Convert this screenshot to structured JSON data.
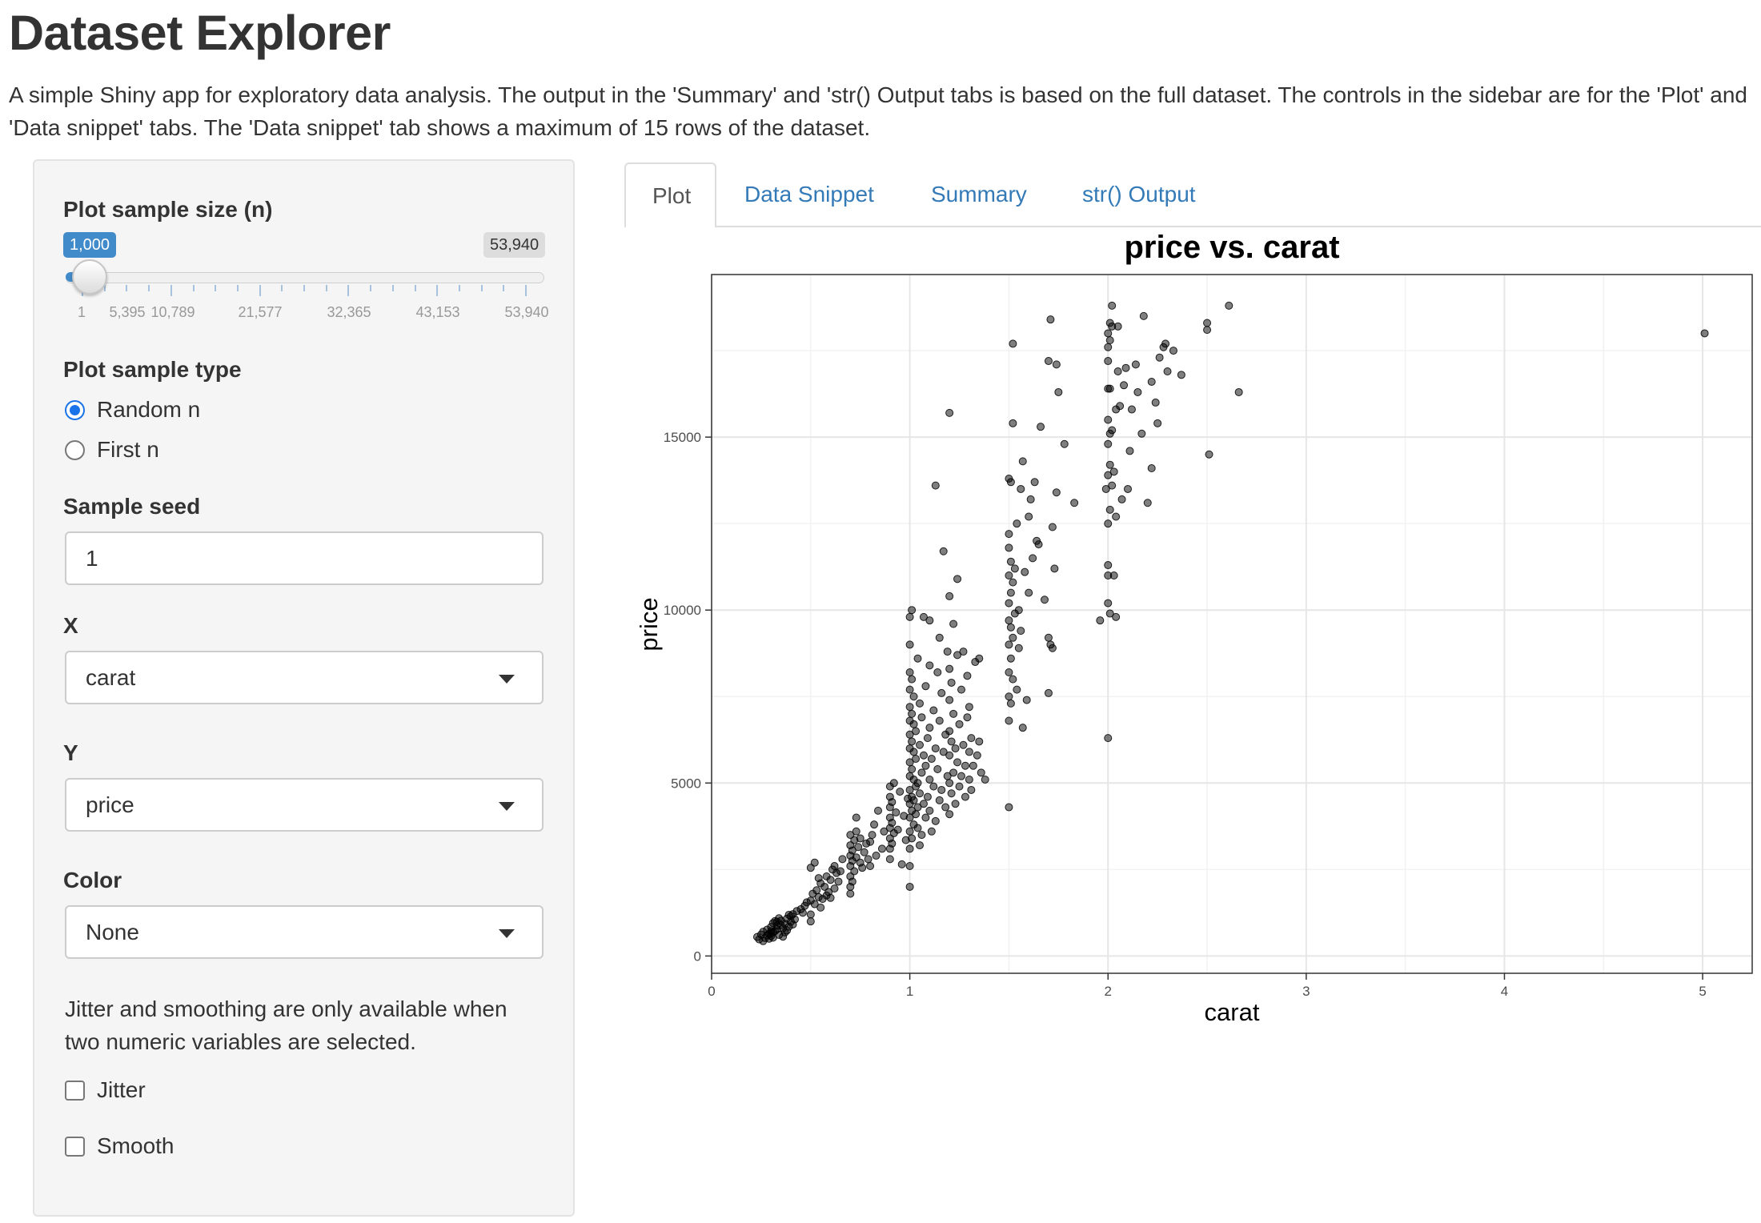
{
  "header": {
    "title": "Dataset Explorer",
    "description": "A simple Shiny app for exploratory data analysis. The output in the 'Summary' and 'str() Output tabs is based on the full dataset. The controls in the sidebar are for the 'Plot' and 'Data snippet' tabs. The 'Data snippet' tab shows a maximum of 15 rows of the dataset."
  },
  "sidebar": {
    "sample_size": {
      "label": "Plot sample size (n)",
      "value_label": "1,000",
      "max_label": "53,940",
      "value": 1000,
      "min": 1,
      "max": 53940,
      "tick_labels": [
        "1",
        "5,395",
        "10,789",
        "21,577",
        "32,365",
        "43,153",
        "53,940"
      ]
    },
    "sample_type": {
      "label": "Plot sample type",
      "options": [
        "Random n",
        "First n"
      ],
      "selected": "Random n"
    },
    "seed": {
      "label": "Sample seed",
      "value": "1"
    },
    "x": {
      "label": "X",
      "value": "carat"
    },
    "y": {
      "label": "Y",
      "value": "price"
    },
    "color": {
      "label": "Color",
      "value": "None"
    },
    "help_text": "Jitter and smoothing are only available when two numeric variables are selected.",
    "jitter": {
      "label": "Jitter",
      "checked": false
    },
    "smooth": {
      "label": "Smooth",
      "checked": false
    }
  },
  "tabs": [
    {
      "label": "Plot",
      "active": true
    },
    {
      "label": "Data Snippet",
      "active": false
    },
    {
      "label": "Summary",
      "active": false
    },
    {
      "label": "str() Output",
      "active": false
    }
  ],
  "chart_data": {
    "type": "scatter",
    "title": "price vs. carat",
    "xlabel": "carat",
    "ylabel": "price",
    "xlim": [
      0,
      5.25
    ],
    "ylim": [
      -500,
      19700
    ],
    "xticks": [
      0,
      1,
      2,
      3,
      4,
      5
    ],
    "yticks": [
      0,
      5000,
      10000,
      15000
    ],
    "grid": true,
    "point_color": "#000000",
    "point_opacity": 0.5,
    "points": [
      [
        0.23,
        550
      ],
      [
        0.24,
        480
      ],
      [
        0.25,
        620
      ],
      [
        0.26,
        700
      ],
      [
        0.27,
        520
      ],
      [
        0.28,
        760
      ],
      [
        0.29,
        640
      ],
      [
        0.3,
        580
      ],
      [
        0.3,
        840
      ],
      [
        0.31,
        690
      ],
      [
        0.31,
        950
      ],
      [
        0.32,
        720
      ],
      [
        0.33,
        880
      ],
      [
        0.34,
        610
      ],
      [
        0.35,
        1020
      ],
      [
        0.36,
        800
      ],
      [
        0.37,
        930
      ],
      [
        0.38,
        1080
      ],
      [
        0.39,
        850
      ],
      [
        0.4,
        1150
      ],
      [
        0.4,
        990
      ],
      [
        0.41,
        1210
      ],
      [
        0.42,
        1060
      ],
      [
        0.43,
        1300
      ],
      [
        0.3,
        650
      ],
      [
        0.33,
        770
      ],
      [
        0.36,
        560
      ],
      [
        0.32,
        1010
      ],
      [
        0.35,
        890
      ],
      [
        0.38,
        740
      ],
      [
        0.26,
        430
      ],
      [
        0.29,
        500
      ],
      [
        0.34,
        1090
      ],
      [
        0.37,
        680
      ],
      [
        0.39,
        1190
      ],
      [
        0.41,
        910
      ],
      [
        0.3,
        720
      ],
      [
        0.31,
        530
      ],
      [
        0.28,
        600
      ],
      [
        0.33,
        990
      ],
      [
        0.45,
        1350
      ],
      [
        0.47,
        1450
      ],
      [
        0.5,
        1600
      ],
      [
        0.5,
        1200
      ],
      [
        0.51,
        1800
      ],
      [
        0.52,
        1500
      ],
      [
        0.53,
        1900
      ],
      [
        0.54,
        1700
      ],
      [
        0.55,
        2100
      ],
      [
        0.56,
        1650
      ],
      [
        0.57,
        2000
      ],
      [
        0.58,
        2300
      ],
      [
        0.59,
        1850
      ],
      [
        0.6,
        2200
      ],
      [
        0.61,
        2500
      ],
      [
        0.62,
        1950
      ],
      [
        0.63,
        2400
      ],
      [
        0.64,
        2150
      ],
      [
        0.5,
        2550
      ],
      [
        0.52,
        2700
      ],
      [
        0.55,
        1400
      ],
      [
        0.48,
        1550
      ],
      [
        0.46,
        1250
      ],
      [
        0.58,
        1750
      ],
      [
        0.62,
        2600
      ],
      [
        0.5,
        1000
      ],
      [
        0.54,
        2250
      ],
      [
        0.6,
        1680
      ],
      [
        0.66,
        2800
      ],
      [
        0.65,
        2450
      ],
      [
        0.7,
        2000
      ],
      [
        0.7,
        2300
      ],
      [
        0.7,
        2600
      ],
      [
        0.7,
        2900
      ],
      [
        0.7,
        3200
      ],
      [
        0.7,
        3500
      ],
      [
        0.71,
        2150
      ],
      [
        0.71,
        2750
      ],
      [
        0.71,
        3050
      ],
      [
        0.72,
        2450
      ],
      [
        0.72,
        3350
      ],
      [
        0.73,
        2850
      ],
      [
        0.73,
        3600
      ],
      [
        0.74,
        3150
      ],
      [
        0.75,
        2700
      ],
      [
        0.75,
        3400
      ],
      [
        0.76,
        2550
      ],
      [
        0.77,
        3000
      ],
      [
        0.78,
        3250
      ],
      [
        0.79,
        2800
      ],
      [
        0.8,
        3300
      ],
      [
        0.8,
        2600
      ],
      [
        0.81,
        3500
      ],
      [
        0.82,
        3800
      ],
      [
        0.83,
        2900
      ],
      [
        0.84,
        4200
      ],
      [
        0.86,
        3100
      ],
      [
        0.87,
        3600
      ],
      [
        0.7,
        1800
      ],
      [
        0.73,
        4000
      ],
      [
        0.9,
        2800
      ],
      [
        0.9,
        3100
      ],
      [
        0.9,
        3400
      ],
      [
        0.9,
        3700
      ],
      [
        0.9,
        4000
      ],
      [
        0.9,
        4300
      ],
      [
        0.9,
        4600
      ],
      [
        0.9,
        4900
      ],
      [
        0.91,
        3250
      ],
      [
        0.91,
        3850
      ],
      [
        0.91,
        4450
      ],
      [
        0.92,
        3550
      ],
      [
        0.92,
        5000
      ],
      [
        0.93,
        4150
      ],
      [
        0.94,
        3650
      ],
      [
        0.95,
        4750
      ],
      [
        0.96,
        2650
      ],
      [
        0.97,
        4050
      ],
      [
        0.98,
        3350
      ],
      [
        0.99,
        4550
      ],
      [
        1.0,
        2000
      ],
      [
        1.0,
        2600
      ],
      [
        1.0,
        3100
      ],
      [
        1.0,
        3600
      ],
      [
        1.0,
        4000
      ],
      [
        1.0,
        4400
      ],
      [
        1.0,
        4800
      ],
      [
        1.0,
        5200
      ],
      [
        1.0,
        5600
      ],
      [
        1.0,
        6000
      ],
      [
        1.0,
        6400
      ],
      [
        1.0,
        6800
      ],
      [
        1.0,
        7200
      ],
      [
        1.0,
        7700
      ],
      [
        1.0,
        8200
      ],
      [
        1.0,
        9000
      ],
      [
        1.0,
        9800
      ],
      [
        1.01,
        3400
      ],
      [
        1.01,
        4200
      ],
      [
        1.01,
        4600
      ],
      [
        1.01,
        5400
      ],
      [
        1.01,
        6200
      ],
      [
        1.01,
        7000
      ],
      [
        1.01,
        8000
      ],
      [
        1.01,
        10000
      ],
      [
        1.02,
        3800
      ],
      [
        1.02,
        4500
      ],
      [
        1.02,
        5100
      ],
      [
        1.02,
        5900
      ],
      [
        1.02,
        6700
      ],
      [
        1.02,
        7500
      ],
      [
        1.03,
        4100
      ],
      [
        1.03,
        4900
      ],
      [
        1.03,
        5700
      ],
      [
        1.03,
        6500
      ],
      [
        1.04,
        3700
      ],
      [
        1.04,
        4300
      ],
      [
        1.04,
        5000
      ],
      [
        1.04,
        8600
      ],
      [
        1.05,
        3200
      ],
      [
        1.05,
        4700
      ],
      [
        1.05,
        6100
      ],
      [
        1.05,
        7300
      ],
      [
        1.06,
        3500
      ],
      [
        1.06,
        5300
      ],
      [
        1.06,
        6900
      ],
      [
        1.07,
        4400
      ],
      [
        1.07,
        5800
      ],
      [
        1.07,
        9800
      ],
      [
        1.08,
        4000
      ],
      [
        1.08,
        5500
      ],
      [
        1.08,
        7800
      ],
      [
        1.09,
        4600
      ],
      [
        1.09,
        6300
      ],
      [
        1.1,
        4200
      ],
      [
        1.1,
        5100
      ],
      [
        1.1,
        6600
      ],
      [
        1.1,
        8400
      ],
      [
        1.1,
        9700
      ],
      [
        1.11,
        3600
      ],
      [
        1.11,
        5700
      ],
      [
        1.12,
        4900
      ],
      [
        1.12,
        7100
      ],
      [
        1.13,
        3900
      ],
      [
        1.13,
        6000
      ],
      [
        1.13,
        13600
      ],
      [
        1.14,
        5400
      ],
      [
        1.14,
        8200
      ],
      [
        1.15,
        4500
      ],
      [
        1.15,
        6800
      ],
      [
        1.15,
        9200
      ],
      [
        1.16,
        4800
      ],
      [
        1.16,
        7600
      ],
      [
        1.17,
        5900
      ],
      [
        1.17,
        11700
      ],
      [
        1.18,
        4300
      ],
      [
        1.18,
        6400
      ],
      [
        1.19,
        5200
      ],
      [
        1.19,
        8800
      ],
      [
        1.2,
        4100
      ],
      [
        1.2,
        5000
      ],
      [
        1.2,
        5800
      ],
      [
        1.2,
        6500
      ],
      [
        1.2,
        7400
      ],
      [
        1.2,
        8300
      ],
      [
        1.2,
        10400
      ],
      [
        1.2,
        15700
      ],
      [
        1.21,
        4700
      ],
      [
        1.21,
        6200
      ],
      [
        1.21,
        7900
      ],
      [
        1.22,
        5300
      ],
      [
        1.22,
        7000
      ],
      [
        1.22,
        9600
      ],
      [
        1.23,
        4400
      ],
      [
        1.23,
        6000
      ],
      [
        1.24,
        5600
      ],
      [
        1.24,
        8700
      ],
      [
        1.24,
        10900
      ],
      [
        1.25,
        4900
      ],
      [
        1.25,
        6700
      ],
      [
        1.26,
        5200
      ],
      [
        1.26,
        7700
      ],
      [
        1.27,
        6100
      ],
      [
        1.27,
        8800
      ],
      [
        1.28,
        4600
      ],
      [
        1.28,
        5500
      ],
      [
        1.29,
        6900
      ],
      [
        1.29,
        8100
      ],
      [
        1.3,
        5100
      ],
      [
        1.3,
        5900
      ],
      [
        1.3,
        7200
      ],
      [
        1.31,
        4800
      ],
      [
        1.31,
        6300
      ],
      [
        1.32,
        5500
      ],
      [
        1.33,
        8500
      ],
      [
        1.34,
        5800
      ],
      [
        1.35,
        6200
      ],
      [
        1.35,
        8600
      ],
      [
        1.36,
        5300
      ],
      [
        1.38,
        5100
      ],
      [
        1.5,
        4300
      ],
      [
        1.5,
        6800
      ],
      [
        1.5,
        7500
      ],
      [
        1.5,
        8200
      ],
      [
        1.5,
        9000
      ],
      [
        1.5,
        9700
      ],
      [
        1.5,
        10200
      ],
      [
        1.5,
        11000
      ],
      [
        1.5,
        11800
      ],
      [
        1.5,
        12200
      ],
      [
        1.5,
        13800
      ],
      [
        1.51,
        7300
      ],
      [
        1.51,
        8600
      ],
      [
        1.51,
        9500
      ],
      [
        1.51,
        10500
      ],
      [
        1.51,
        11400
      ],
      [
        1.51,
        13700
      ],
      [
        1.52,
        8000
      ],
      [
        1.52,
        9200
      ],
      [
        1.52,
        10800
      ],
      [
        1.52,
        15400
      ],
      [
        1.52,
        17700
      ],
      [
        1.53,
        9900
      ],
      [
        1.53,
        11200
      ],
      [
        1.54,
        7700
      ],
      [
        1.54,
        12500
      ],
      [
        1.55,
        8900
      ],
      [
        1.55,
        10000
      ],
      [
        1.56,
        9400
      ],
      [
        1.56,
        13500
      ],
      [
        1.57,
        6600
      ],
      [
        1.57,
        14300
      ],
      [
        1.58,
        11100
      ],
      [
        1.59,
        7400
      ],
      [
        1.6,
        10500
      ],
      [
        1.6,
        12700
      ],
      [
        1.61,
        13200
      ],
      [
        1.62,
        11500
      ],
      [
        1.63,
        13700
      ],
      [
        1.64,
        12000
      ],
      [
        1.65,
        11900
      ],
      [
        1.66,
        15300
      ],
      [
        1.68,
        10300
      ],
      [
        1.7,
        7600
      ],
      [
        1.7,
        9200
      ],
      [
        1.7,
        17200
      ],
      [
        1.71,
        18400
      ],
      [
        1.71,
        9000
      ],
      [
        1.72,
        8900
      ],
      [
        1.72,
        12400
      ],
      [
        1.73,
        11200
      ],
      [
        1.74,
        13400
      ],
      [
        1.74,
        17100
      ],
      [
        1.75,
        16300
      ],
      [
        1.78,
        14800
      ],
      [
        1.83,
        13100
      ],
      [
        1.96,
        9700
      ],
      [
        1.99,
        13500
      ],
      [
        2.0,
        6300
      ],
      [
        2.0,
        10200
      ],
      [
        2.0,
        11000
      ],
      [
        2.0,
        11300
      ],
      [
        2.0,
        12500
      ],
      [
        2.0,
        13900
      ],
      [
        2.0,
        14800
      ],
      [
        2.0,
        15500
      ],
      [
        2.0,
        16400
      ],
      [
        2.0,
        17200
      ],
      [
        2.0,
        17600
      ],
      [
        2.0,
        18000
      ],
      [
        2.01,
        9900
      ],
      [
        2.01,
        12900
      ],
      [
        2.01,
        14200
      ],
      [
        2.01,
        15100
      ],
      [
        2.01,
        16400
      ],
      [
        2.01,
        17800
      ],
      [
        2.01,
        18300
      ],
      [
        2.02,
        13600
      ],
      [
        2.02,
        15200
      ],
      [
        2.02,
        18200
      ],
      [
        2.02,
        18800
      ],
      [
        2.03,
        11000
      ],
      [
        2.03,
        14000
      ],
      [
        2.04,
        12700
      ],
      [
        2.04,
        15800
      ],
      [
        2.04,
        9800
      ],
      [
        2.05,
        18200
      ],
      [
        2.05,
        16900
      ],
      [
        2.06,
        15900
      ],
      [
        2.07,
        13200
      ],
      [
        2.08,
        16500
      ],
      [
        2.09,
        17000
      ],
      [
        2.1,
        13500
      ],
      [
        2.11,
        14600
      ],
      [
        2.12,
        15800
      ],
      [
        2.14,
        17100
      ],
      [
        2.15,
        16300
      ],
      [
        2.17,
        15100
      ],
      [
        2.18,
        18500
      ],
      [
        2.2,
        13100
      ],
      [
        2.22,
        14100
      ],
      [
        2.22,
        16600
      ],
      [
        2.24,
        16000
      ],
      [
        2.25,
        15400
      ],
      [
        2.26,
        17300
      ],
      [
        2.28,
        17600
      ],
      [
        2.29,
        17700
      ],
      [
        2.3,
        16900
      ],
      [
        2.33,
        17500
      ],
      [
        2.37,
        16800
      ],
      [
        2.5,
        18100
      ],
      [
        2.5,
        18300
      ],
      [
        2.51,
        14500
      ],
      [
        2.61,
        18800
      ],
      [
        2.66,
        16300
      ],
      [
        5.01,
        18000
      ]
    ]
  }
}
